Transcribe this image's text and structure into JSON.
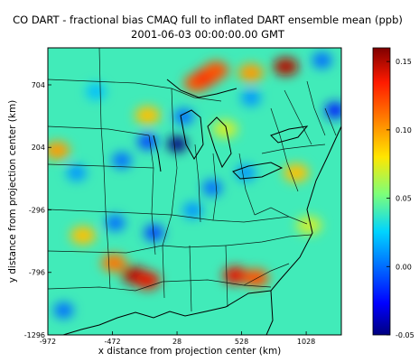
{
  "chart_data": {
    "type": "heatmap",
    "title": "CO DART - fractional bias CMAQ full to inflated DART ensemble mean (ppb)",
    "subtitle": "2001-06-03 00:00:00.00 GMT",
    "xlabel": "x distance from projection center (km)",
    "ylabel": "y distance from projection center (km)",
    "xlim": [
      -972,
      1300
    ],
    "ylim": [
      -1296,
      1000
    ],
    "x_ticks": [
      -972,
      -472,
      28,
      528,
      1028
    ],
    "y_ticks": [
      -1296,
      -796,
      -296,
      204,
      704
    ],
    "colorbar": {
      "ticks": [
        -0.05,
        0.0,
        0.05,
        0.1,
        0.15
      ],
      "tick_labels": [
        "-0.05",
        "0.00",
        "0.05",
        "0.10",
        "0.15"
      ],
      "range": [
        -0.05,
        0.16
      ],
      "colormap": "jet"
    },
    "background_value": 0.04,
    "hotspots": [
      {
        "x": 870,
        "y": 850,
        "value": 0.15
      },
      {
        "x": 600,
        "y": 800,
        "value": 0.1
      },
      {
        "x": 180,
        "y": 720,
        "value": 0.12
      },
      {
        "x": 260,
        "y": 770,
        "value": 0.13
      },
      {
        "x": 330,
        "y": 820,
        "value": 0.12
      },
      {
        "x": -460,
        "y": -720,
        "value": 0.11
      },
      {
        "x": -300,
        "y": -820,
        "value": 0.15
      },
      {
        "x": -200,
        "y": -860,
        "value": 0.14
      },
      {
        "x": 480,
        "y": -820,
        "value": 0.14
      },
      {
        "x": 640,
        "y": -840,
        "value": 0.12
      },
      {
        "x": -900,
        "y": 180,
        "value": 0.1
      },
      {
        "x": -200,
        "y": 460,
        "value": 0.09
      },
      {
        "x": 950,
        "y": 0,
        "value": 0.09
      },
      {
        "x": 1050,
        "y": -420,
        "value": 0.07
      },
      {
        "x": 400,
        "y": 350,
        "value": 0.07
      },
      {
        "x": -700,
        "y": -500,
        "value": 0.09
      }
    ],
    "coldspots": [
      {
        "x": 30,
        "y": 230,
        "value": -0.05
      },
      {
        "x": -200,
        "y": 250,
        "value": -0.01
      },
      {
        "x": 80,
        "y": 450,
        "value": 0.0
      },
      {
        "x": -450,
        "y": -400,
        "value": 0.0
      },
      {
        "x": -150,
        "y": -480,
        "value": -0.01
      },
      {
        "x": 300,
        "y": -120,
        "value": 0.0
      },
      {
        "x": 1250,
        "y": 500,
        "value": -0.02
      },
      {
        "x": 1150,
        "y": 900,
        "value": 0.0
      },
      {
        "x": -750,
        "y": 0,
        "value": 0.01
      },
      {
        "x": -400,
        "y": 100,
        "value": 0.0
      },
      {
        "x": 600,
        "y": 600,
        "value": 0.01
      },
      {
        "x": 150,
        "y": -300,
        "value": 0.01
      },
      {
        "x": -850,
        "y": -1100,
        "value": 0.0
      },
      {
        "x": 560,
        "y": 0,
        "value": 0.01
      },
      {
        "x": -600,
        "y": 650,
        "value": 0.02
      }
    ]
  }
}
